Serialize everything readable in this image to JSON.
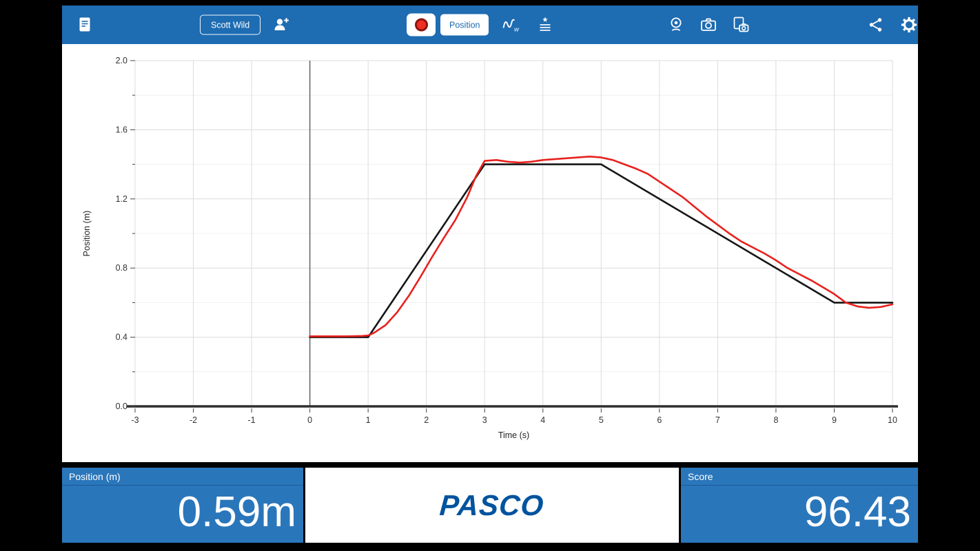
{
  "toolbar": {
    "user_button_label": "Scott Wild",
    "display_button_label": "Position",
    "icons": [
      "journal-icon",
      "add-user-icon",
      "record-dot-icon",
      "sampling-options-icon",
      "experiment-list-icon",
      "webcam-icon",
      "camera-icon",
      "screenshot-icon",
      "share-icon",
      "settings-gear-icon"
    ]
  },
  "readouts": {
    "position_label": "Position (m)",
    "position_value": "0.59m",
    "score_label": "Score",
    "score_value": "96.43",
    "brand": "PASCO"
  },
  "colors": {
    "toolbar_blue": "#1e6cb2",
    "panel_blue": "#2a76bb",
    "logo_blue": "#00539e",
    "record_red": "#ee3124"
  },
  "chart_data": {
    "type": "line",
    "title": "",
    "xlabel": "Time (s)",
    "ylabel": "Position (m)",
    "xlim": [
      -3,
      10
    ],
    "ylim": [
      0,
      2
    ],
    "x_ticks": [
      -3,
      -2,
      -1,
      0,
      1,
      2,
      3,
      4,
      5,
      6,
      7,
      8,
      9,
      10
    ],
    "y_ticks": [
      0,
      0.4,
      0.8,
      1.2,
      1.6,
      2
    ],
    "y_minor_step": 0.2,
    "grid": true,
    "legend": false,
    "series": [
      {
        "name": "target-path",
        "color": "#161616",
        "width": 2.6,
        "x": [
          0,
          1,
          3,
          5,
          9,
          10
        ],
        "y": [
          0.4,
          0.4,
          1.4,
          1.4,
          0.6,
          0.6
        ]
      },
      {
        "name": "recorded-position",
        "color": "#e8211d",
        "width": 2.6,
        "x": [
          0,
          0.3,
          0.6,
          0.9,
          1.0,
          1.1,
          1.3,
          1.5,
          1.7,
          1.9,
          2.1,
          2.3,
          2.5,
          2.7,
          2.85,
          3.0,
          3.2,
          3.4,
          3.6,
          3.8,
          4.0,
          4.2,
          4.4,
          4.6,
          4.8,
          5.0,
          5.2,
          5.4,
          5.6,
          5.8,
          6.0,
          6.2,
          6.4,
          6.6,
          6.8,
          6.9,
          7.0,
          7.2,
          7.4,
          7.6,
          7.8,
          8.0,
          8.2,
          8.4,
          8.6,
          8.8,
          9.0,
          9.2,
          9.4,
          9.6,
          9.8,
          10.0
        ],
        "y": [
          0.405,
          0.405,
          0.405,
          0.407,
          0.41,
          0.425,
          0.47,
          0.545,
          0.64,
          0.75,
          0.865,
          0.975,
          1.08,
          1.21,
          1.33,
          1.42,
          1.425,
          1.415,
          1.41,
          1.415,
          1.425,
          1.43,
          1.435,
          1.44,
          1.445,
          1.44,
          1.425,
          1.4,
          1.375,
          1.345,
          1.3,
          1.255,
          1.21,
          1.155,
          1.1,
          1.075,
          1.05,
          1.0,
          0.955,
          0.92,
          0.885,
          0.845,
          0.8,
          0.765,
          0.73,
          0.69,
          0.65,
          0.6,
          0.578,
          0.57,
          0.575,
          0.59
        ]
      }
    ]
  }
}
